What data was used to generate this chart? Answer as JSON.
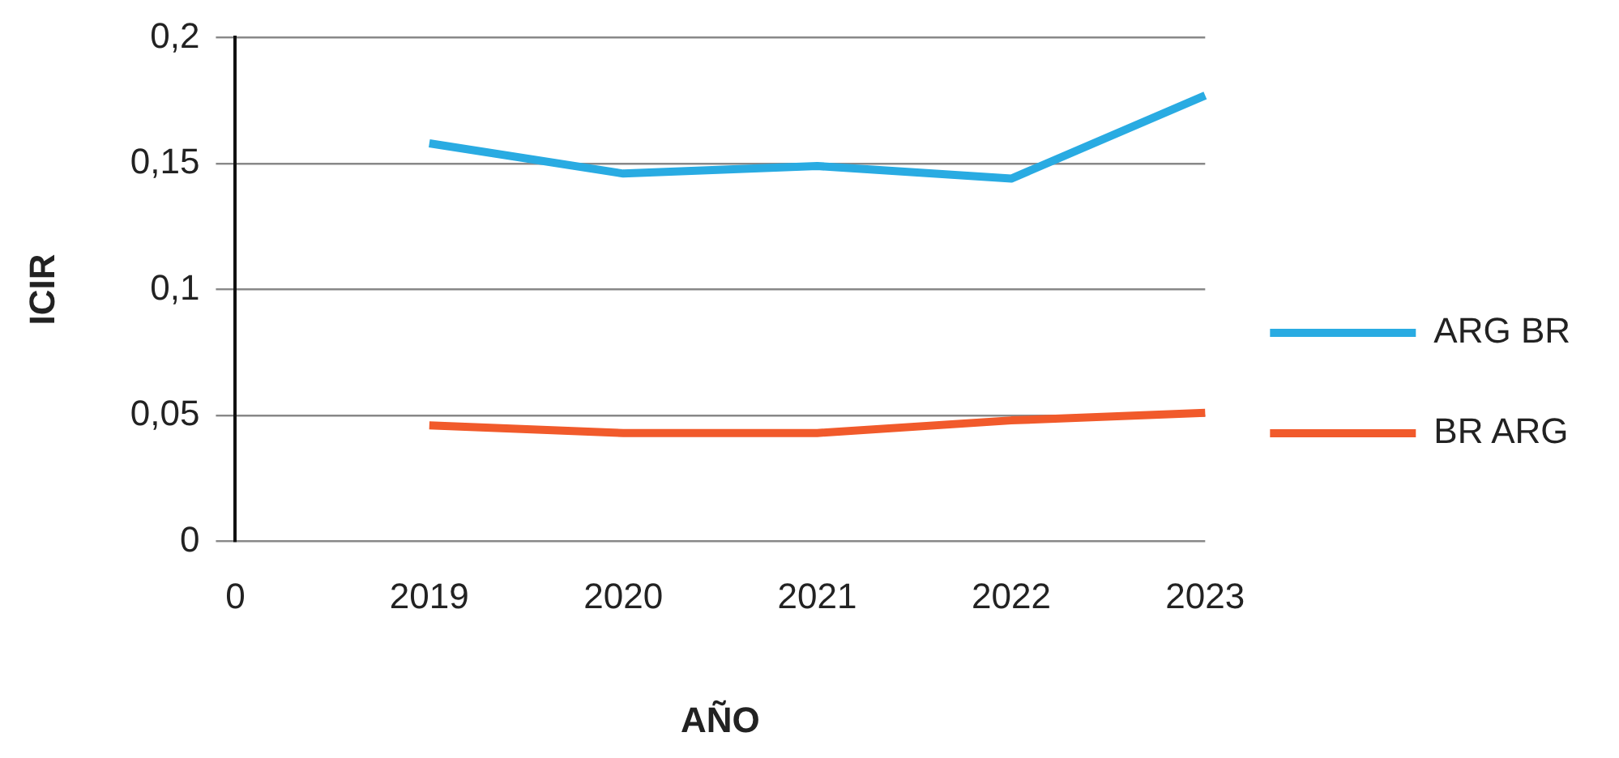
{
  "chart_data": {
    "type": "line",
    "xlabel": "AÑO",
    "ylabel": "ICIR",
    "categories": [
      "0",
      "2019",
      "2020",
      "2021",
      "2022",
      "2023"
    ],
    "series": [
      {
        "name": "ARG BR",
        "color": "#29abe2",
        "values": [
          null,
          0.158,
          0.146,
          0.149,
          0.144,
          0.177
        ]
      },
      {
        "name": "BR ARG",
        "color": "#f15a2b",
        "values": [
          null,
          0.046,
          0.043,
          0.043,
          0.048,
          0.051
        ]
      }
    ],
    "ylim": [
      0,
      0.2
    ],
    "yticks": [
      {
        "value": 0,
        "label": "0"
      },
      {
        "value": 0.05,
        "label": "0,05"
      },
      {
        "value": 0.1,
        "label": "0,1"
      },
      {
        "value": 0.15,
        "label": "0,15"
      },
      {
        "value": 0.2,
        "label": "0,2"
      }
    ],
    "grid": "y",
    "legend": "right",
    "marker": "none",
    "line_style": "solid"
  }
}
